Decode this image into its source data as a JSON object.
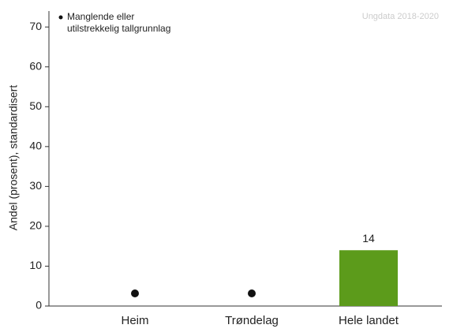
{
  "chart_data": {
    "type": "bar",
    "source": "Ungdata 2018-2020",
    "ylabel": "Andel (prosent), standardisert",
    "missing_note": [
      "Manglende eller",
      "utilstrekkelig tallgrunnlag"
    ],
    "categories": [
      "Heim",
      "Trøndelag",
      "Hele landet"
    ],
    "values": [
      null,
      null,
      14
    ],
    "color": "#5c9b1b",
    "ylim": [
      0,
      74
    ],
    "yticks": [
      0,
      10,
      20,
      30,
      40,
      50,
      60,
      70
    ]
  }
}
